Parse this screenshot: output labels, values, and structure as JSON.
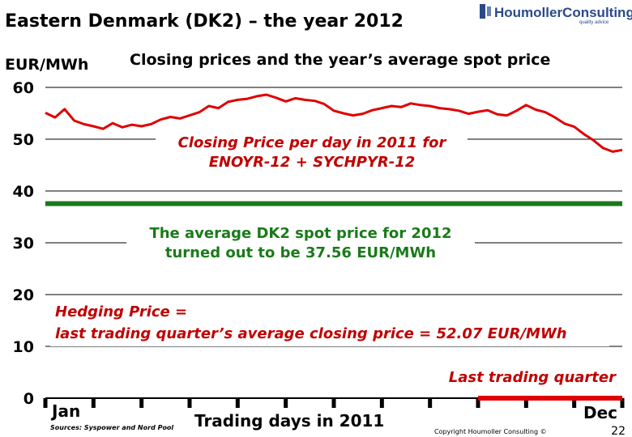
{
  "header": {
    "title": "Eastern Denmark (DK2) – the year 2012",
    "subtitle": "Closing prices and the year’s average spot price",
    "logo_text": "HoumollerConsulting",
    "logo_tagline": "quality advice"
  },
  "footer": {
    "source": "Sources: Syspower and Nord Pool",
    "copyright": "Copyright Houmoller Consulting ©",
    "page_number": "22"
  },
  "chart_data": {
    "type": "line",
    "title": "Eastern Denmark (DK2) – the year 2012",
    "subtitle": "Closing prices and the year’s average spot price",
    "ylabel": "EUR/MWh",
    "xlabel": "Trading days in 2011",
    "ylim": [
      0,
      60
    ],
    "yticks": [
      "0",
      "10",
      "20",
      "30",
      "40",
      "50",
      "60"
    ],
    "x_start_label": "Jan",
    "x_end_label": "Dec",
    "grid": true,
    "series": [
      {
        "color": "#e00000",
        "x": [
          0,
          1,
          2,
          3,
          4,
          5,
          6,
          7,
          8,
          9,
          10,
          11,
          12,
          13,
          14,
          15,
          16,
          17,
          18,
          19,
          20,
          21,
          22,
          23,
          24,
          25,
          26,
          27,
          28,
          29,
          30,
          31,
          32,
          33,
          34,
          35,
          36,
          37,
          38,
          39,
          40,
          41,
          42,
          43,
          44,
          45,
          46,
          47,
          48,
          49,
          50,
          51,
          52,
          53,
          54,
          55,
          56,
          57,
          58,
          59,
          60
        ],
        "values": [
          55.1,
          54.2,
          55.8,
          53.6,
          52.9,
          52.5,
          52.0,
          53.1,
          52.3,
          52.8,
          52.5,
          52.9,
          53.8,
          54.3,
          54.0,
          54.6,
          55.2,
          56.4,
          56.0,
          57.2,
          57.6,
          57.8,
          58.3,
          58.6,
          58.0,
          57.3,
          57.9,
          57.6,
          57.4,
          56.8,
          55.5,
          55.0,
          54.6,
          54.9,
          55.6,
          56.0,
          56.4,
          56.2,
          56.9,
          56.6,
          56.4,
          56.0,
          55.8,
          55.5,
          54.9,
          55.3,
          55.6,
          54.8,
          54.6,
          55.5,
          56.6,
          55.7,
          55.2,
          54.2,
          53.0,
          52.4,
          51.0,
          49.8,
          48.3,
          47.6,
          47.9
        ]
      },
      {
        "name": "The average DK2 spot price for 2012",
        "color": "#1a7a1a",
        "values": [
          37.56
        ]
      }
    ],
    "annotations": {
      "closing_line1": "Closing Price per day in 2011 for",
      "closing_line2": "ENOYR-12 + SYCHPYR-12",
      "spot_line1": "The average DK2 spot price for 2012",
      "spot_line2": "turned out to be 37.56 EUR/MWh",
      "hedging_line1": "Hedging Price  =",
      "hedging_line2": "last trading quarter’s average closing price  =  52.07 EUR/MWh",
      "last_quarter": "Last trading quarter"
    },
    "last_quarter_x_range": [
      45,
      60
    ]
  }
}
